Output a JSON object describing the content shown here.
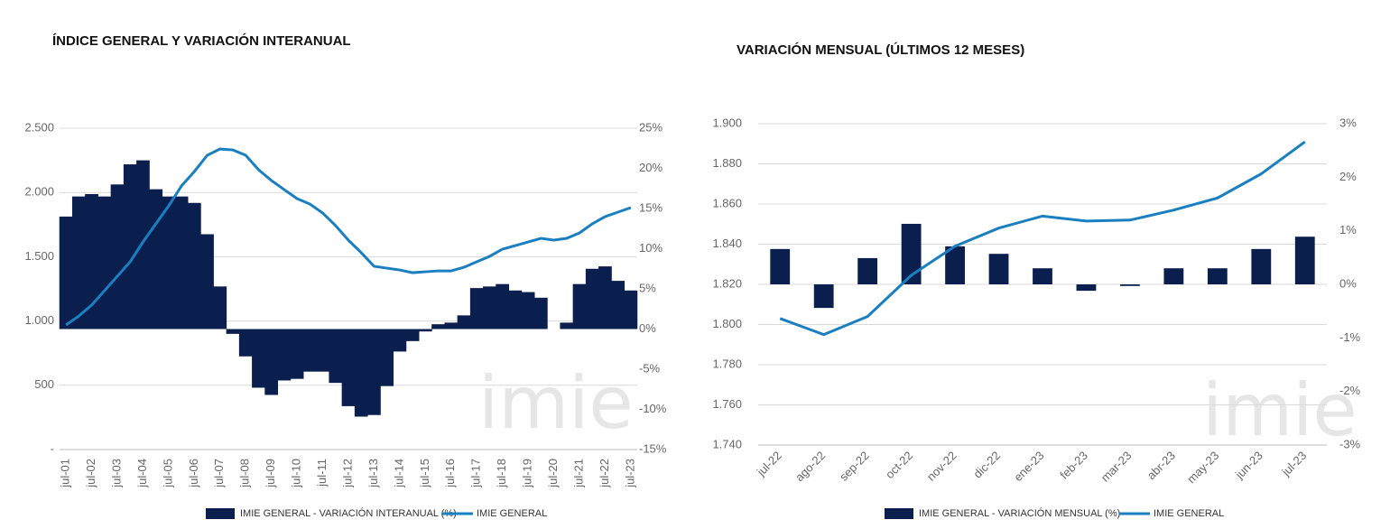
{
  "chart_data": [
    {
      "type": "bar-line",
      "title": "ÍNDICE GENERAL Y VARIACIÓN INTERANUAL",
      "watermark": "imie",
      "categories": [
        "jul-01",
        null,
        "jul-02",
        null,
        "jul-03",
        null,
        "jul-04",
        null,
        "jul-05",
        null,
        "jul-06",
        null,
        "jul-07",
        null,
        "jul-08",
        null,
        "jul-09",
        null,
        "jul-10",
        null,
        "jul-11",
        null,
        "jul-12",
        null,
        "jul-13",
        null,
        "jul-14",
        null,
        "jul-15",
        null,
        "jul-16",
        null,
        "jul-17",
        null,
        "jul-18",
        null,
        "jul-19",
        null,
        "jul-20",
        null,
        "jul-21",
        null,
        "jul-22",
        null,
        "jul-23"
      ],
      "series": [
        {
          "name": "IMIE GENERAL - VARIACIÓN INTERANUAL (%)",
          "color": "#0b1f4f",
          "type": "bar",
          "axis": "y2",
          "values": [
            14,
            16.5,
            16.8,
            16.5,
            18,
            20.5,
            21,
            17.4,
            16.5,
            16.5,
            15.7,
            11.8,
            5.3,
            -0.6,
            -3.4,
            -7.3,
            -8.2,
            -6.4,
            -6.2,
            -5.3,
            -5.3,
            -6.7,
            -9.6,
            -10.9,
            -10.7,
            -7.1,
            -2.8,
            -1.5,
            -0.3,
            0.6,
            0.8,
            1.7,
            5.1,
            5.3,
            5.6,
            4.8,
            4.6,
            3.9,
            0,
            0.8,
            5.6,
            7.5,
            7.8,
            6,
            4.8
          ]
        },
        {
          "name": "IMIE GENERAL",
          "color": "#1a7fc1",
          "type": "line",
          "values": [
            969,
            1039,
            1124,
            1236,
            1348,
            1461,
            1615,
            1756,
            1896,
            2051,
            2163,
            2289,
            2338,
            2331,
            2289,
            2177,
            2093,
            2022,
            1952,
            1910,
            1840,
            1742,
            1629,
            1531,
            1426,
            1411,
            1397,
            1376,
            1383,
            1390,
            1390,
            1418,
            1461,
            1503,
            1559,
            1587,
            1615,
            1643,
            1629,
            1643,
            1685,
            1756,
            1812,
            1847,
            1882
          ]
        }
      ],
      "ylim": [
        0,
        2500
      ],
      "yticks": [
        {
          "value": 0,
          "label": "-"
        },
        500,
        {
          "value": 1000,
          "label": "1.000"
        },
        {
          "value": 1500,
          "label": "1.500"
        },
        {
          "value": 2000,
          "label": "2.000"
        },
        {
          "value": 2500,
          "label": "2.500"
        }
      ],
      "y2lim": [
        -15,
        25
      ],
      "y2ticks": [
        {
          "value": -15,
          "label": "-15%"
        },
        {
          "value": -10,
          "label": "-10%"
        },
        {
          "value": -5,
          "label": "-5%"
        },
        {
          "value": 0,
          "label": "0%"
        },
        {
          "value": 5,
          "label": "5%"
        },
        {
          "value": 10,
          "label": "10%"
        },
        {
          "value": 15,
          "label": "15%"
        },
        {
          "value": 20,
          "label": "20%"
        },
        {
          "value": 25,
          "label": "25%"
        }
      ],
      "grid": true
    },
    {
      "type": "bar-line",
      "title": "VARIACIÓN MENSUAL (ÚLTIMOS 12 MESES)",
      "watermark": "imie",
      "categories": [
        "jul-22",
        "ago-22",
        "sep-22",
        "oct-22",
        "nov-22",
        "dic-22",
        "ene-23",
        "feb-23",
        "mar-23",
        "abr-23",
        "may-23",
        "jun-23",
        "jul-23"
      ],
      "series": [
        {
          "name": "IMIE GENERAL - VARIACIÓN MENSUAL (%)",
          "color": "#0b1f4f",
          "type": "bar",
          "axis": "y2",
          "values": [
            0.66,
            -0.44,
            0.49,
            1.13,
            0.71,
            0.57,
            0.3,
            -0.12,
            -0.03,
            0.3,
            0.3,
            0.66,
            0.89
          ]
        },
        {
          "name": "IMIE GENERAL",
          "color": "#1a7fc1",
          "type": "line",
          "values": [
            1803,
            1795,
            1804,
            1824.5,
            1839,
            1848,
            1854,
            1851.5,
            1852,
            1857,
            1863,
            1875,
            1891
          ]
        }
      ],
      "ylim": [
        1740,
        1900
      ],
      "yticks": [
        {
          "value": 1740,
          "label": "1.740"
        },
        {
          "value": 1760,
          "label": "1.760"
        },
        {
          "value": 1780,
          "label": "1.780"
        },
        {
          "value": 1800,
          "label": "1.800"
        },
        {
          "value": 1820,
          "label": "1.820"
        },
        {
          "value": 1840,
          "label": "1.840"
        },
        {
          "value": 1860,
          "label": "1.860"
        },
        {
          "value": 1880,
          "label": "1.880"
        },
        {
          "value": 1900,
          "label": "1.900"
        }
      ],
      "y2lim": [
        -3,
        3
      ],
      "y2ticks": [
        {
          "value": -3,
          "label": "-3%"
        },
        {
          "value": -2,
          "label": "-2%"
        },
        {
          "value": -1,
          "label": "-1%"
        },
        {
          "value": 0,
          "label": "0%"
        },
        {
          "value": 1,
          "label": "1%"
        },
        {
          "value": 2,
          "label": "2%"
        },
        {
          "value": 3,
          "label": "3%"
        }
      ],
      "grid": true
    }
  ]
}
